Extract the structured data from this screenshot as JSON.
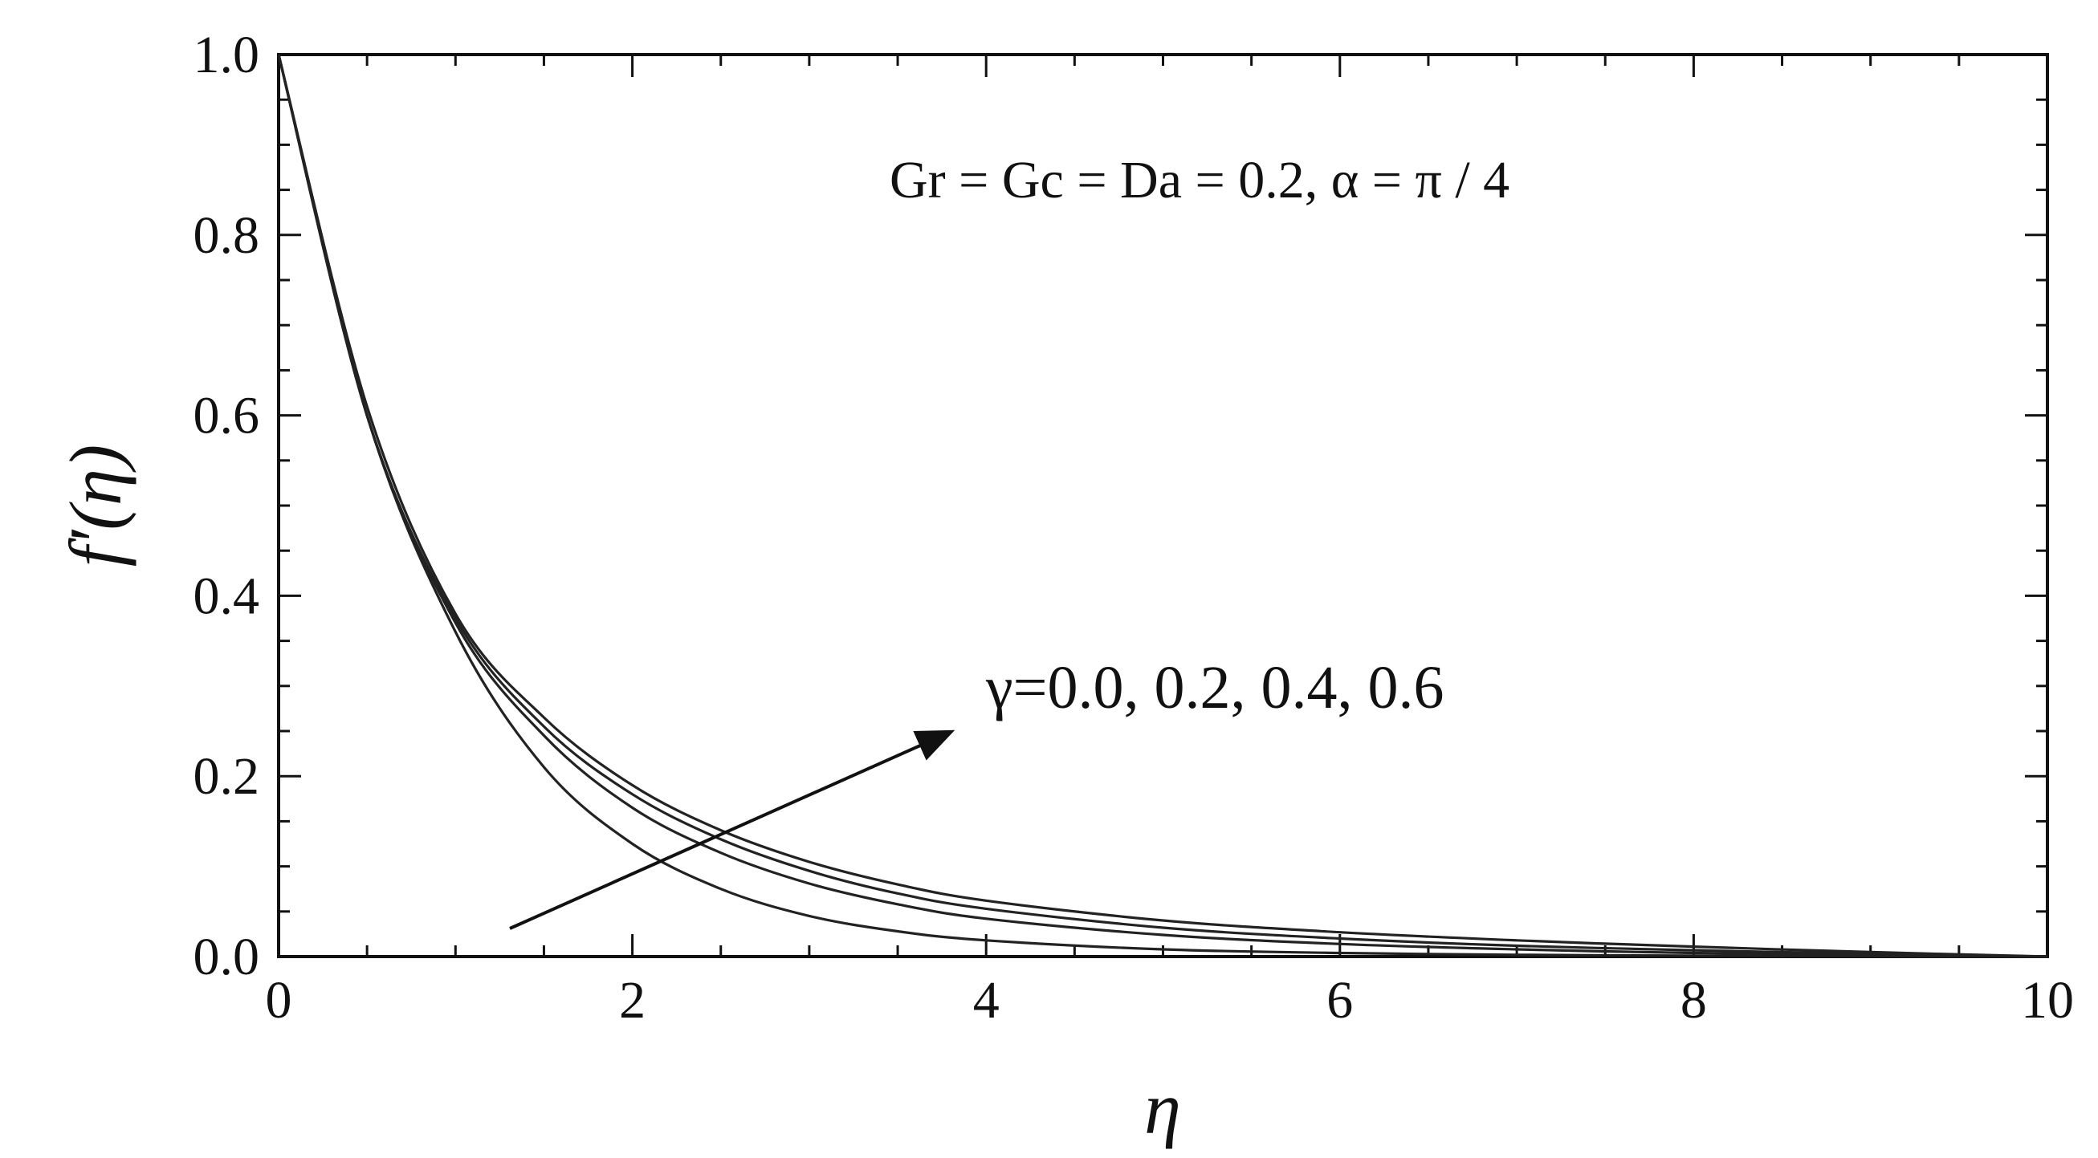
{
  "chart_data": {
    "type": "line",
    "title": "",
    "xlabel": "η",
    "ylabel": "f′(η)",
    "xlim": [
      0,
      10
    ],
    "ylim": [
      0,
      1.0
    ],
    "x_ticks": [
      "0",
      "2",
      "4",
      "6",
      "8",
      "10"
    ],
    "y_ticks": [
      "0.0",
      "0.2",
      "0.4",
      "0.6",
      "0.8",
      "1.0"
    ],
    "grid": false,
    "line_color": "#222222",
    "annotations": {
      "parameters": "Gr = Gc = Da = 0.2, α = π / 4",
      "series_label": "γ=0.0, 0.2, 0.4, 0.6"
    },
    "x": [
      0,
      0.5,
      1,
      1.5,
      2,
      2.5,
      3,
      3.5,
      4,
      5,
      6,
      7,
      8,
      9,
      10
    ],
    "series": [
      {
        "values": [
          1.0,
          0.6,
          0.36,
          0.21,
          0.125,
          0.075,
          0.045,
          0.028,
          0.018,
          0.008,
          0.004,
          0.002,
          0.001,
          0.0005,
          0.0
        ]
      },
      {
        "values": [
          1.0,
          0.6,
          0.37,
          0.245,
          0.165,
          0.115,
          0.081,
          0.058,
          0.042,
          0.024,
          0.014,
          0.008,
          0.004,
          0.002,
          0.0
        ]
      },
      {
        "values": [
          1.0,
          0.6,
          0.375,
          0.255,
          0.18,
          0.13,
          0.095,
          0.07,
          0.053,
          0.032,
          0.02,
          0.012,
          0.007,
          0.003,
          0.0
        ]
      },
      {
        "values": [
          1.0,
          0.61,
          0.38,
          0.265,
          0.19,
          0.14,
          0.105,
          0.08,
          0.062,
          0.04,
          0.027,
          0.018,
          0.011,
          0.005,
          0.0
        ]
      }
    ]
  }
}
